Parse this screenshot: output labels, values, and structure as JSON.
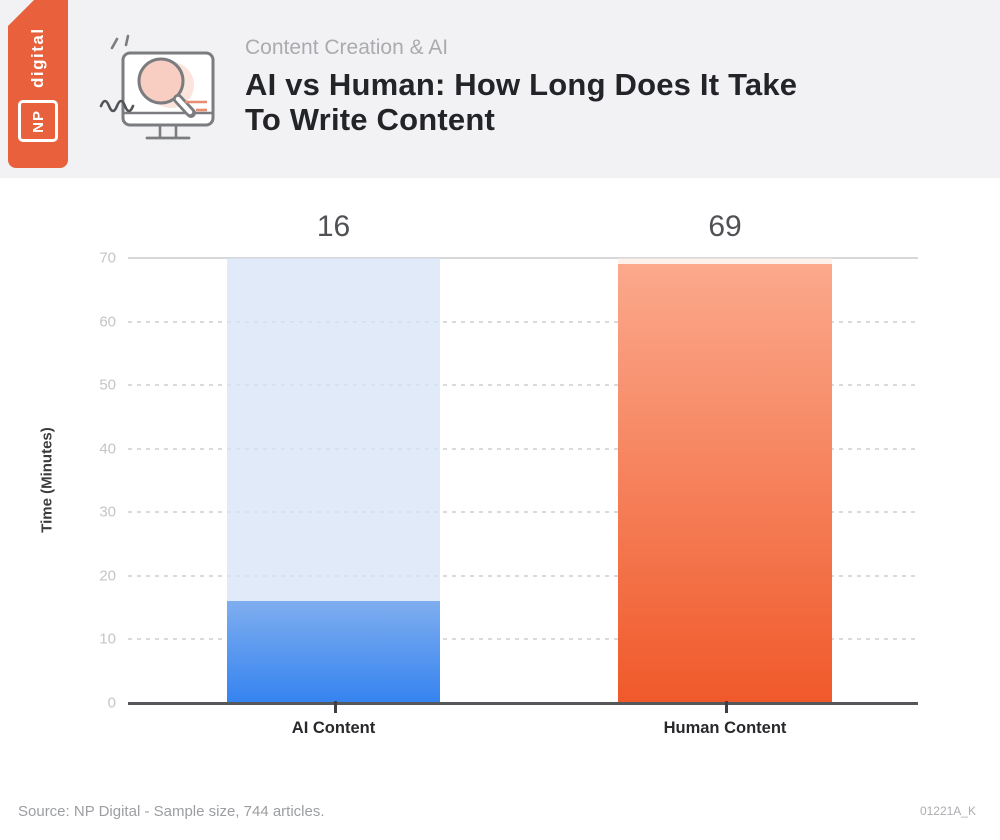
{
  "brand": {
    "np_label": "NP",
    "digital_label": "digital",
    "brand_orange": "#E8603C"
  },
  "header": {
    "category": "Content Creation & AI",
    "title_line1": "AI vs Human: How Long Does It Take",
    "title_line2": "To Write Content"
  },
  "icons": {
    "header_icon": "monitor-magnifier-icon"
  },
  "chart_data": {
    "type": "bar",
    "title": "AI vs Human: How Long Does It Take To Write Content",
    "categories": [
      "AI Content",
      "Human Content"
    ],
    "values": [
      16,
      69
    ],
    "xlabel": "",
    "ylabel": "Time (Minutes)",
    "ylim": [
      0,
      70
    ],
    "yticks": [
      0,
      10,
      20,
      30,
      40,
      50,
      60,
      70
    ],
    "grid": "horizontal-dashed",
    "legend": "none",
    "bars": [
      {
        "name": "AI Content",
        "value": 16,
        "gradient_top": "#7FAEEF",
        "gradient_bottom": "#3583F0",
        "track_color": "rgba(214,227,246,0.75)"
      },
      {
        "name": "Human Content",
        "value": 69,
        "gradient_top": "#FBA98C",
        "gradient_bottom": "#F0592A",
        "track_color": "rgba(252,231,224,0.6)"
      }
    ]
  },
  "footer": {
    "source": "Source: NP Digital - Sample size, 744 articles.",
    "code": "01221A_K"
  }
}
